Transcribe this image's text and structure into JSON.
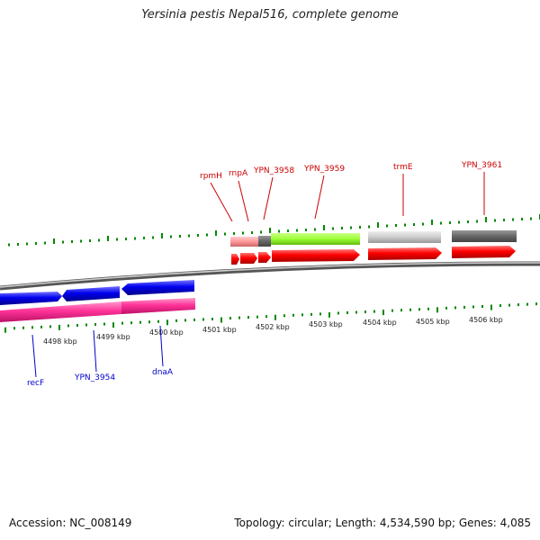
{
  "title": "Yersinia pestis Nepal516, complete genome",
  "footer": {
    "accession": "Accession: NC_008149",
    "summary": "Topology: circular; Length: 4,534,590 bp; Genes: 4,085"
  },
  "scale": {
    "ticks": [
      {
        "label": "4498 kbp",
        "kbp": 4498
      },
      {
        "label": "4499 kbp",
        "kbp": 4499
      },
      {
        "label": "4500 kbp",
        "kbp": 4500
      },
      {
        "label": "4501 kbp",
        "kbp": 4501
      },
      {
        "label": "4502 kbp",
        "kbp": 4502
      },
      {
        "label": "4503 kbp",
        "kbp": 4503
      },
      {
        "label": "4504 kbp",
        "kbp": 4504
      },
      {
        "label": "4505 kbp",
        "kbp": 4505
      },
      {
        "label": "4506 kbp",
        "kbp": 4506
      }
    ]
  },
  "genes": {
    "forward": [
      {
        "name": "rpmH",
        "color": "#cc0000"
      },
      {
        "name": "rnpA",
        "color": "#cc0000"
      },
      {
        "name": "YPN_3958",
        "color": "#cc0000"
      },
      {
        "name": "YPN_3959",
        "color": "#cc0000"
      },
      {
        "name": "trmE",
        "color": "#cc0000"
      },
      {
        "name": "YPN_3961",
        "color": "#cc0000"
      }
    ],
    "reverse": [
      {
        "name": "recF",
        "color": "#0000cc"
      },
      {
        "name": "YPN_3954",
        "color": "#0000cc"
      },
      {
        "name": "dnaA",
        "color": "#0000cc"
      }
    ]
  },
  "colors": {
    "forward_cds": "#ff0000",
    "reverse_cds": "#0000ee",
    "reverse_feature": "#ff3399",
    "cog_green": "#99ff33",
    "cog_light_gray": "#cccccc",
    "cog_dark_gray": "#666666",
    "cog_pink": "#ff9999",
    "backbone": "#888888",
    "tick_green": "#008800"
  }
}
